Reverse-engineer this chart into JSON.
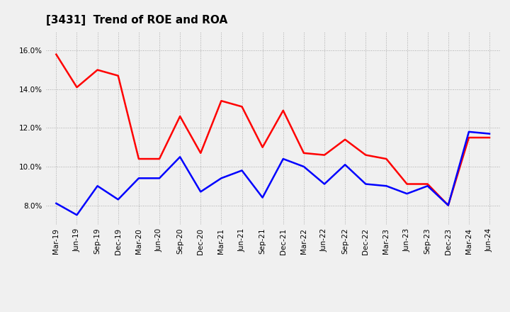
{
  "title": "[3431]  Trend of ROE and ROA",
  "x_labels": [
    "Mar-19",
    "Jun-19",
    "Sep-19",
    "Dec-19",
    "Mar-20",
    "Jun-20",
    "Sep-20",
    "Dec-20",
    "Mar-21",
    "Jun-21",
    "Sep-21",
    "Dec-21",
    "Mar-22",
    "Jun-22",
    "Sep-22",
    "Dec-22",
    "Mar-23",
    "Jun-23",
    "Sep-23",
    "Dec-23",
    "Mar-24",
    "Jun-24"
  ],
  "roe": [
    15.8,
    14.1,
    15.0,
    14.7,
    10.4,
    10.4,
    12.6,
    10.7,
    13.4,
    13.1,
    11.0,
    12.9,
    10.7,
    10.6,
    11.4,
    10.6,
    10.4,
    9.1,
    9.1,
    8.0,
    11.5,
    11.5
  ],
  "roa": [
    8.1,
    7.5,
    9.0,
    8.3,
    9.4,
    9.4,
    10.5,
    8.7,
    9.4,
    9.8,
    8.4,
    10.4,
    10.0,
    9.1,
    10.1,
    9.1,
    9.0,
    8.6,
    9.0,
    8.0,
    11.8,
    11.7
  ],
  "roe_color": "#ff0000",
  "roa_color": "#0000ff",
  "ylim": [
    7.0,
    17.0
  ],
  "yticks": [
    8.0,
    10.0,
    12.0,
    14.0,
    16.0
  ],
  "ytick_labels": [
    "8.0%",
    "10.0%",
    "12.0%",
    "14.0%",
    "16.0%"
  ],
  "background_color": "#f0f0f0",
  "grid_color": "#aaaaaa",
  "title_fontsize": 11,
  "legend_fontsize": 9,
  "tick_fontsize": 7.5
}
